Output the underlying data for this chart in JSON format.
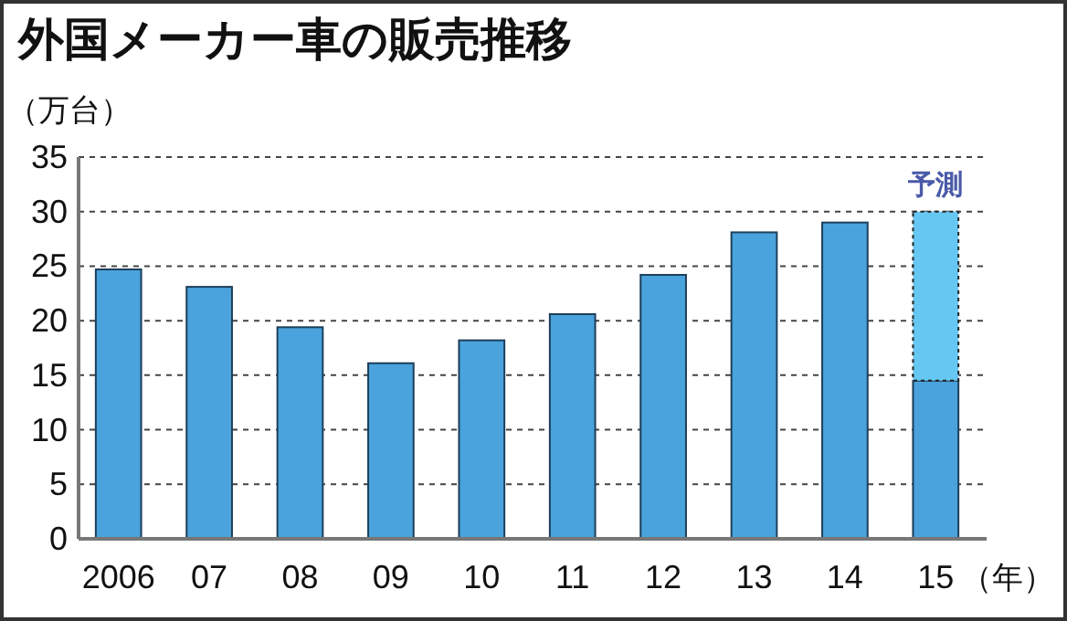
{
  "chart_data": {
    "type": "bar",
    "title": "外国メーカー車の販売推移",
    "ylabel": "（万台）",
    "xlabel": "（年）",
    "categories": [
      "2006",
      "07",
      "08",
      "09",
      "10",
      "11",
      "12",
      "13",
      "14",
      "15"
    ],
    "stacked": true,
    "series": [
      {
        "color": "#4aa3dc",
        "values": [
          24.7,
          23.1,
          19.4,
          16.1,
          18.2,
          20.6,
          24.2,
          28.1,
          29.0,
          14.5
        ]
      },
      {
        "name": "予測",
        "color": "#66c8f2",
        "values": [
          null,
          null,
          null,
          null,
          null,
          null,
          null,
          null,
          null,
          15.5
        ]
      }
    ],
    "ylim": [
      0,
      35
    ],
    "yticks": [
      0,
      5,
      10,
      15,
      20,
      25,
      30,
      35
    ],
    "grid": "y"
  }
}
